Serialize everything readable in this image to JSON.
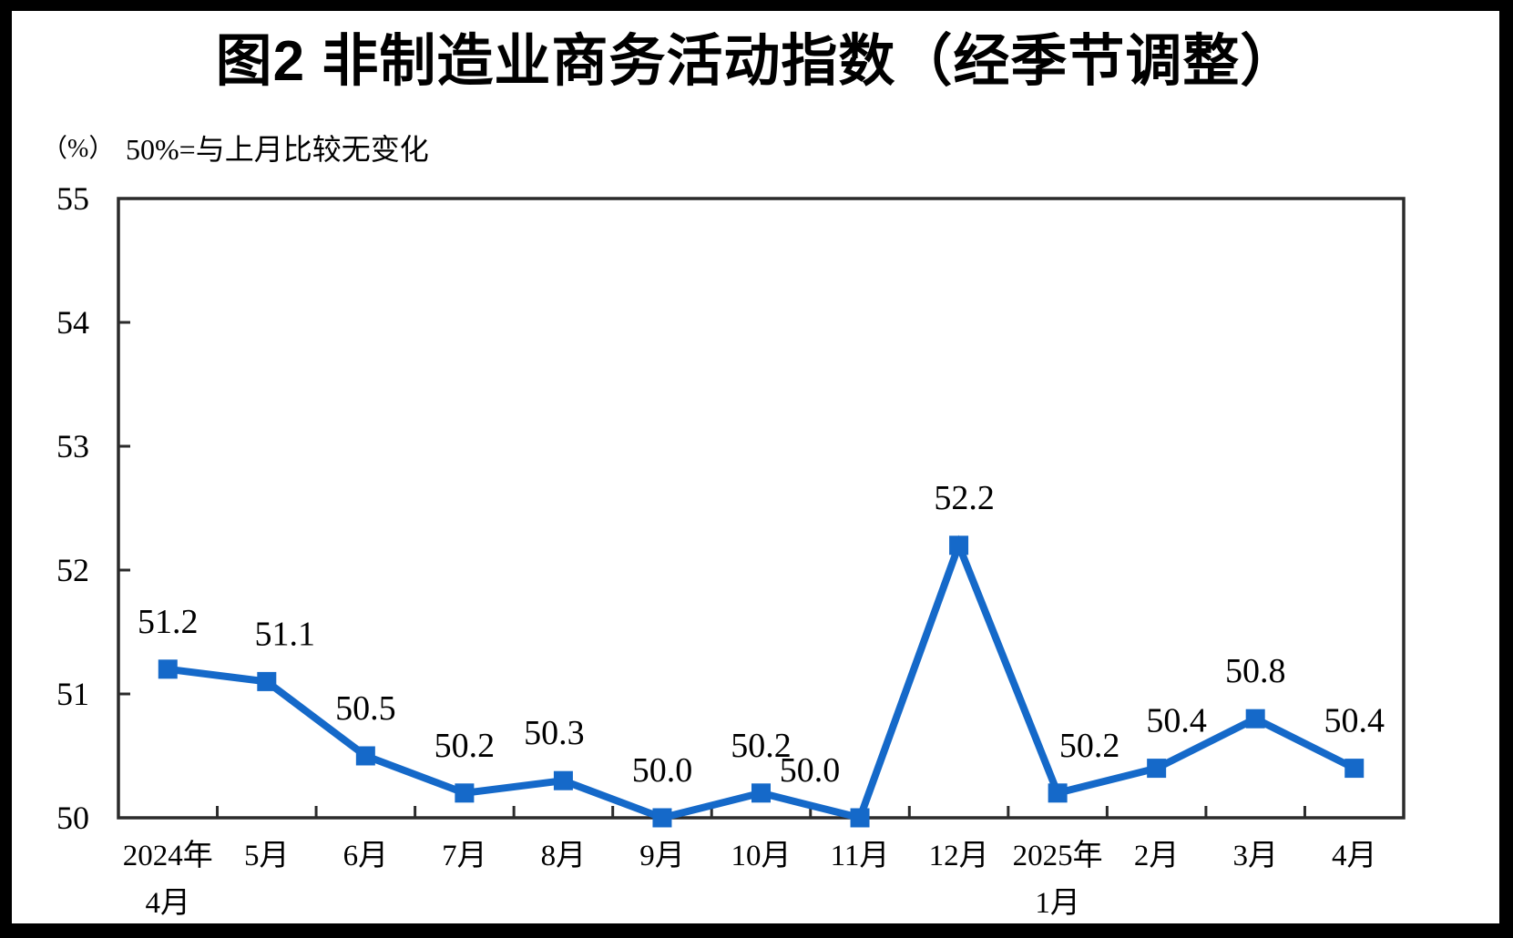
{
  "chart_data": {
    "type": "line",
    "title": "图2 非制造业商务活动指数（经季节调整）",
    "unit_label": "（%）",
    "subtitle": "50%=与上月比较无变化",
    "categories": [
      [
        "2024年",
        "4月"
      ],
      [
        "5月"
      ],
      [
        "6月"
      ],
      [
        "7月"
      ],
      [
        "8月"
      ],
      [
        "9月"
      ],
      [
        "10月"
      ],
      [
        "11月"
      ],
      [
        "12月"
      ],
      [
        "2025年",
        "1月"
      ],
      [
        "2月"
      ],
      [
        "3月"
      ],
      [
        "4月"
      ]
    ],
    "values": [
      51.2,
      51.1,
      50.5,
      50.2,
      50.3,
      50.0,
      50.2,
      50.0,
      52.2,
      50.2,
      50.4,
      50.8,
      50.4
    ],
    "ylim": [
      50,
      55
    ],
    "yticks": [
      50,
      51,
      52,
      53,
      54,
      55
    ],
    "grid": false,
    "legend": "none",
    "marker": "square",
    "colors": {
      "line": "#1569C9",
      "axis": "#2B2B2B",
      "text": "#000000"
    },
    "label_dx": [
      0,
      20,
      0,
      0,
      -10,
      0,
      0,
      -55,
      6,
      35,
      22,
      0,
      0
    ]
  }
}
